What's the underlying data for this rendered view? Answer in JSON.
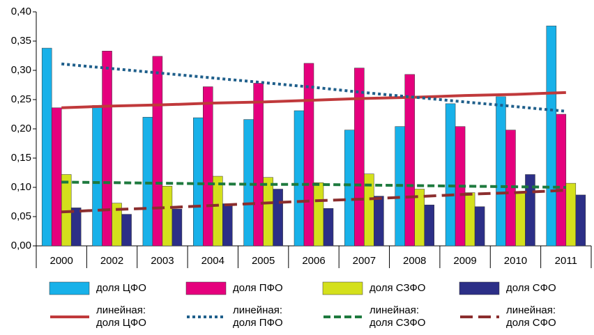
{
  "chart_data": {
    "type": "bar",
    "categories": [
      "2000",
      "2002",
      "2003",
      "2004",
      "2005",
      "2006",
      "2007",
      "2008",
      "2009",
      "2010",
      "2011"
    ],
    "series": [
      {
        "name": "доля ЦФО",
        "color": "#18b1e9",
        "values": [
          0.338,
          0.24,
          0.22,
          0.219,
          0.216,
          0.231,
          0.198,
          0.204,
          0.243,
          0.255,
          0.376
        ]
      },
      {
        "name": "доля ПФО",
        "color": "#e5007d",
        "values": [
          0.236,
          0.333,
          0.324,
          0.272,
          0.278,
          0.312,
          0.304,
          0.293,
          0.204,
          0.198,
          0.225
        ]
      },
      {
        "name": "доля СЗФО",
        "color": "#d4e01c",
        "values": [
          0.122,
          0.073,
          0.102,
          0.119,
          0.117,
          0.108,
          0.123,
          0.097,
          0.091,
          0.092,
          0.107
        ]
      },
      {
        "name": "доля СФО",
        "color": "#2c2f87",
        "values": [
          0.065,
          0.054,
          0.063,
          0.072,
          0.097,
          0.064,
          0.085,
          0.07,
          0.067,
          0.122,
          0.087
        ]
      }
    ],
    "trend_series": [
      {
        "name": "линейная: доля ЦФО",
        "color": "#c0393b",
        "dash": "solid",
        "values": [
          0.236,
          0.239,
          0.241,
          0.244,
          0.246,
          0.249,
          0.252,
          0.254,
          0.257,
          0.259,
          0.262
        ]
      },
      {
        "name": "линейная: доля ПФО",
        "color": "#1f5f8b",
        "dash": "dotted",
        "values": [
          0.311,
          0.303,
          0.295,
          0.287,
          0.279,
          0.271,
          0.262,
          0.254,
          0.246,
          0.238,
          0.23
        ]
      },
      {
        "name": "линейная: доля СЗФО",
        "color": "#1e7a3e",
        "dash": "dashed",
        "values": [
          0.109,
          0.108,
          0.107,
          0.106,
          0.105,
          0.105,
          0.104,
          0.103,
          0.102,
          0.101,
          0.1
        ]
      },
      {
        "name": "линейная: доля СФО",
        "color": "#8b2e2e",
        "dash": "longdash",
        "values": [
          0.058,
          0.062,
          0.065,
          0.069,
          0.073,
          0.077,
          0.08,
          0.084,
          0.088,
          0.091,
          0.095
        ]
      }
    ],
    "ylim": [
      0,
      0.4
    ],
    "yticks": [
      {
        "value": 0,
        "label": "0,00"
      },
      {
        "value": 0.05,
        "label": "0,05"
      },
      {
        "value": 0.1,
        "label": "0,10"
      },
      {
        "value": 0.15,
        "label": "0,15"
      },
      {
        "value": 0.2,
        "label": "0,20"
      },
      {
        "value": 0.25,
        "label": "0,25"
      },
      {
        "value": 0.3,
        "label": "0,30"
      },
      {
        "value": 0.35,
        "label": "0,35"
      },
      {
        "value": 0.4,
        "label": "0,40"
      }
    ],
    "grid": false,
    "legend": "bottom"
  }
}
